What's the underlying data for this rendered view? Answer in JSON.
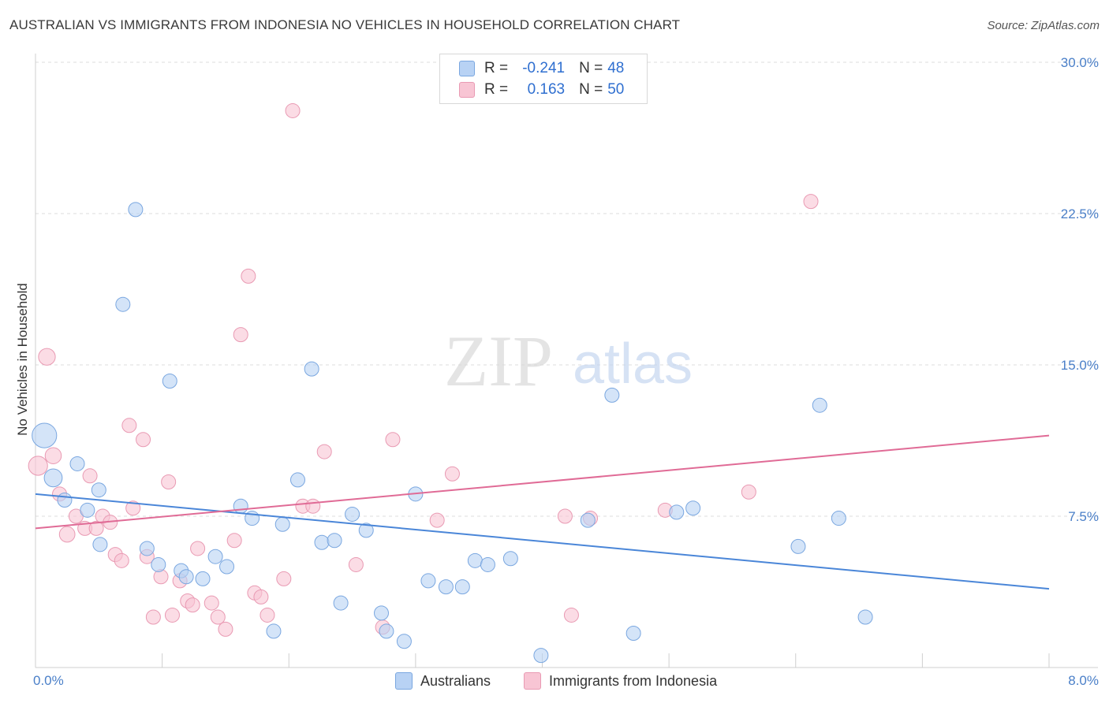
{
  "title": "AUSTRALIAN VS IMMIGRANTS FROM INDONESIA NO VEHICLES IN HOUSEHOLD CORRELATION CHART",
  "source": "Source: ZipAtlas.com",
  "watermark": {
    "zip": "ZIP",
    "atlas": "atlas"
  },
  "legend": {
    "rows": [
      {
        "r_label": "R =",
        "r_value": "-0.241",
        "n_label": "N =",
        "n_value": "48",
        "fill": "#b8d2f4",
        "stroke": "#7aa7e0"
      },
      {
        "r_label": "R =",
        "r_value": "0.163",
        "n_label": "N =",
        "n_value": "50",
        "fill": "#f8c5d4",
        "stroke": "#e99ab3"
      }
    ]
  },
  "bottom_legend": [
    {
      "label": "Australians",
      "fill": "#b8d2f4",
      "stroke": "#7aa7e0"
    },
    {
      "label": "Immigrants from Indonesia",
      "fill": "#f8c5d4",
      "stroke": "#e99ab3"
    }
  ],
  "chart_data": {
    "type": "scatter",
    "title": "AUSTRALIAN VS IMMIGRANTS FROM INDONESIA NO VEHICLES IN HOUSEHOLD CORRELATION CHART",
    "xlabel": "",
    "ylabel": "No Vehicles in Household",
    "xlim": [
      0.0,
      8.0
    ],
    "ylim": [
      0.0,
      30.0
    ],
    "x_tick_labels": [
      {
        "value": 0.0,
        "label": "0.0%"
      },
      {
        "value": 8.0,
        "label": "8.0%"
      }
    ],
    "y_tick_labels": [
      {
        "value": 7.5,
        "label": "7.5%"
      },
      {
        "value": 15.0,
        "label": "15.0%"
      },
      {
        "value": 22.5,
        "label": "22.5%"
      },
      {
        "value": 30.0,
        "label": "30.0%"
      }
    ],
    "grid": true,
    "legend_position": "top-center",
    "series": [
      {
        "name": "Australians",
        "color": "#4a86d8",
        "fill": "#b8d2f4",
        "trend": {
          "x": [
            0.0,
            8.0
          ],
          "y": [
            8.6,
            3.9
          ]
        },
        "points": [
          {
            "x": 0.07,
            "y": 11.5,
            "size": 3
          },
          {
            "x": 0.14,
            "y": 9.4,
            "size": 1.6
          },
          {
            "x": 0.23,
            "y": 8.3,
            "size": 1
          },
          {
            "x": 0.33,
            "y": 10.1,
            "size": 1
          },
          {
            "x": 0.41,
            "y": 7.8,
            "size": 1
          },
          {
            "x": 0.5,
            "y": 8.8,
            "size": 1
          },
          {
            "x": 0.51,
            "y": 6.1,
            "size": 1
          },
          {
            "x": 0.69,
            "y": 18.0,
            "size": 1
          },
          {
            "x": 0.79,
            "y": 22.7,
            "size": 1
          },
          {
            "x": 0.88,
            "y": 5.9,
            "size": 1
          },
          {
            "x": 0.97,
            "y": 5.1,
            "size": 1
          },
          {
            "x": 1.06,
            "y": 14.2,
            "size": 1
          },
          {
            "x": 1.15,
            "y": 4.8,
            "size": 1
          },
          {
            "x": 1.19,
            "y": 4.5,
            "size": 1
          },
          {
            "x": 1.32,
            "y": 4.4,
            "size": 1
          },
          {
            "x": 1.42,
            "y": 5.5,
            "size": 1
          },
          {
            "x": 1.51,
            "y": 5.0,
            "size": 1
          },
          {
            "x": 1.62,
            "y": 8.0,
            "size": 1
          },
          {
            "x": 1.71,
            "y": 7.4,
            "size": 1
          },
          {
            "x": 1.88,
            "y": 1.8,
            "size": 1
          },
          {
            "x": 1.95,
            "y": 7.1,
            "size": 1
          },
          {
            "x": 2.07,
            "y": 9.3,
            "size": 1
          },
          {
            "x": 2.18,
            "y": 14.8,
            "size": 1
          },
          {
            "x": 2.26,
            "y": 6.2,
            "size": 1
          },
          {
            "x": 2.36,
            "y": 6.3,
            "size": 1
          },
          {
            "x": 2.41,
            "y": 3.2,
            "size": 1
          },
          {
            "x": 2.5,
            "y": 7.6,
            "size": 1
          },
          {
            "x": 2.61,
            "y": 6.8,
            "size": 1
          },
          {
            "x": 2.73,
            "y": 2.7,
            "size": 1
          },
          {
            "x": 2.77,
            "y": 1.8,
            "size": 1
          },
          {
            "x": 2.91,
            "y": 1.3,
            "size": 1
          },
          {
            "x": 3.0,
            "y": 8.6,
            "size": 1
          },
          {
            "x": 3.1,
            "y": 4.3,
            "size": 1
          },
          {
            "x": 3.24,
            "y": 4.0,
            "size": 1
          },
          {
            "x": 3.37,
            "y": 4.0,
            "size": 1
          },
          {
            "x": 3.47,
            "y": 5.3,
            "size": 1
          },
          {
            "x": 3.57,
            "y": 5.1,
            "size": 1
          },
          {
            "x": 3.75,
            "y": 5.4,
            "size": 1
          },
          {
            "x": 3.99,
            "y": 0.6,
            "size": 1
          },
          {
            "x": 4.36,
            "y": 7.3,
            "size": 1
          },
          {
            "x": 4.55,
            "y": 13.5,
            "size": 1
          },
          {
            "x": 4.72,
            "y": 1.7,
            "size": 1
          },
          {
            "x": 5.06,
            "y": 7.7,
            "size": 1
          },
          {
            "x": 5.19,
            "y": 7.9,
            "size": 1
          },
          {
            "x": 6.02,
            "y": 6.0,
            "size": 1
          },
          {
            "x": 6.19,
            "y": 13.0,
            "size": 1
          },
          {
            "x": 6.34,
            "y": 7.4,
            "size": 1
          },
          {
            "x": 6.55,
            "y": 2.5,
            "size": 1
          }
        ]
      },
      {
        "name": "Immigrants from Indonesia",
        "color": "#e06b96",
        "fill": "#f8c5d4",
        "trend": {
          "x": [
            0.0,
            8.0
          ],
          "y": [
            6.9,
            11.5
          ]
        },
        "points": [
          {
            "x": 0.02,
            "y": 10.0,
            "size": 1.8
          },
          {
            "x": 0.09,
            "y": 15.4,
            "size": 1.4
          },
          {
            "x": 0.14,
            "y": 10.5,
            "size": 1.3
          },
          {
            "x": 0.19,
            "y": 8.6,
            "size": 1
          },
          {
            "x": 0.25,
            "y": 6.6,
            "size": 1.2
          },
          {
            "x": 0.32,
            "y": 7.5,
            "size": 1
          },
          {
            "x": 0.39,
            "y": 6.9,
            "size": 1
          },
          {
            "x": 0.43,
            "y": 9.5,
            "size": 1
          },
          {
            "x": 0.48,
            "y": 6.9,
            "size": 1
          },
          {
            "x": 0.53,
            "y": 7.5,
            "size": 1
          },
          {
            "x": 0.59,
            "y": 7.2,
            "size": 1
          },
          {
            "x": 0.63,
            "y": 5.6,
            "size": 1
          },
          {
            "x": 0.68,
            "y": 5.3,
            "size": 1
          },
          {
            "x": 0.74,
            "y": 12.0,
            "size": 1
          },
          {
            "x": 0.77,
            "y": 7.9,
            "size": 1
          },
          {
            "x": 0.85,
            "y": 11.3,
            "size": 1
          },
          {
            "x": 0.88,
            "y": 5.5,
            "size": 1
          },
          {
            "x": 0.93,
            "y": 2.5,
            "size": 1
          },
          {
            "x": 0.99,
            "y": 4.5,
            "size": 1
          },
          {
            "x": 1.05,
            "y": 9.2,
            "size": 1
          },
          {
            "x": 1.08,
            "y": 2.6,
            "size": 1
          },
          {
            "x": 1.14,
            "y": 4.3,
            "size": 1
          },
          {
            "x": 1.2,
            "y": 3.3,
            "size": 1
          },
          {
            "x": 1.24,
            "y": 3.1,
            "size": 1
          },
          {
            "x": 1.28,
            "y": 5.9,
            "size": 1
          },
          {
            "x": 1.39,
            "y": 3.2,
            "size": 1
          },
          {
            "x": 1.44,
            "y": 2.5,
            "size": 1
          },
          {
            "x": 1.5,
            "y": 1.9,
            "size": 1
          },
          {
            "x": 1.57,
            "y": 6.3,
            "size": 1
          },
          {
            "x": 1.62,
            "y": 16.5,
            "size": 1
          },
          {
            "x": 1.68,
            "y": 19.4,
            "size": 1
          },
          {
            "x": 1.73,
            "y": 3.7,
            "size": 1
          },
          {
            "x": 1.78,
            "y": 3.5,
            "size": 1
          },
          {
            "x": 1.83,
            "y": 2.6,
            "size": 1
          },
          {
            "x": 1.96,
            "y": 4.4,
            "size": 1
          },
          {
            "x": 2.03,
            "y": 27.6,
            "size": 1
          },
          {
            "x": 2.11,
            "y": 8.0,
            "size": 1
          },
          {
            "x": 2.19,
            "y": 8.0,
            "size": 1
          },
          {
            "x": 2.28,
            "y": 10.7,
            "size": 1
          },
          {
            "x": 2.53,
            "y": 5.1,
            "size": 1
          },
          {
            "x": 2.74,
            "y": 2.0,
            "size": 1
          },
          {
            "x": 2.82,
            "y": 11.3,
            "size": 1
          },
          {
            "x": 3.17,
            "y": 7.3,
            "size": 1
          },
          {
            "x": 3.29,
            "y": 9.6,
            "size": 1
          },
          {
            "x": 4.18,
            "y": 7.5,
            "size": 1
          },
          {
            "x": 4.23,
            "y": 2.6,
            "size": 1
          },
          {
            "x": 4.38,
            "y": 7.4,
            "size": 1
          },
          {
            "x": 4.97,
            "y": 7.8,
            "size": 1
          },
          {
            "x": 5.63,
            "y": 8.7,
            "size": 1
          },
          {
            "x": 6.12,
            "y": 23.1,
            "size": 1
          }
        ]
      }
    ]
  }
}
